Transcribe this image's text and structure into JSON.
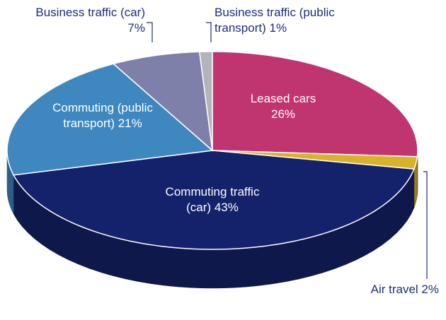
{
  "chart_data": {
    "type": "pie3d",
    "categories": [
      "Leased cars",
      "Air travel",
      "Commuting traffic (car)",
      "Commuting (public transport)",
      "Business traffic (car)",
      "Business traffic (public transport)"
    ],
    "values": [
      26,
      2,
      43,
      21,
      7,
      1
    ],
    "value_labels": [
      "26%",
      "2%",
      "43%",
      "21%",
      "7%",
      "1%"
    ],
    "colors": [
      "#c0356f",
      "#d9b22c",
      "#14226b",
      "#3f88bf",
      "#7f80a9",
      "#b3b3bb"
    ]
  }
}
